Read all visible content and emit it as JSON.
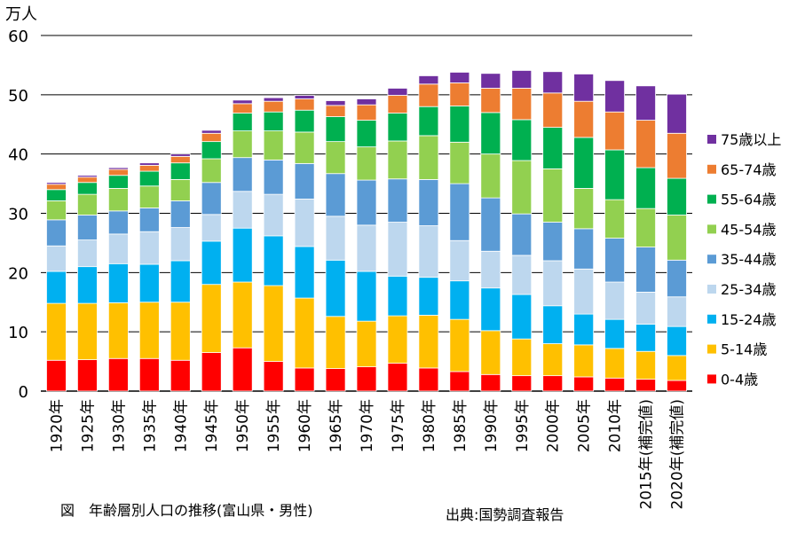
{
  "chart_data": {
    "type": "bar",
    "stacked": true,
    "yunit": "万人",
    "ylim": [
      0,
      60
    ],
    "yticks": [
      0,
      10,
      20,
      30,
      40,
      50,
      60
    ],
    "grid": true,
    "legend_position": "right",
    "categories": [
      "1920年",
      "1925年",
      "1930年",
      "1935年",
      "1940年",
      "1945年",
      "1950年",
      "1955年",
      "1960年",
      "1965年",
      "1970年",
      "1975年",
      "1980年",
      "1985年",
      "1990年",
      "1995年",
      "2000年",
      "2005年",
      "2010年",
      "2015年(補完値)",
      "2020年(補完値)"
    ],
    "series": [
      {
        "name": "0-4歳",
        "color": "#ff0000",
        "values": [
          5.2,
          5.3,
          5.5,
          5.5,
          5.2,
          6.5,
          7.3,
          5.0,
          3.9,
          3.8,
          4.1,
          4.7,
          3.9,
          3.3,
          2.8,
          2.6,
          2.6,
          2.4,
          2.2,
          2.0,
          1.8
        ]
      },
      {
        "name": "5-14歳",
        "color": "#ffc000",
        "values": [
          9.6,
          9.5,
          9.4,
          9.5,
          9.8,
          11.5,
          11.1,
          12.8,
          11.8,
          8.8,
          7.7,
          8.0,
          8.9,
          8.8,
          7.4,
          6.2,
          5.4,
          5.4,
          5.0,
          4.7,
          4.2
        ]
      },
      {
        "name": "15-24歳",
        "color": "#00b0f0",
        "values": [
          5.4,
          6.2,
          6.6,
          6.4,
          7.0,
          7.3,
          9.1,
          8.4,
          8.7,
          9.5,
          8.4,
          6.7,
          6.4,
          6.5,
          7.2,
          7.5,
          6.4,
          5.2,
          4.9,
          4.6,
          4.9
        ]
      },
      {
        "name": "25-34歳",
        "color": "#bdd7ee",
        "values": [
          4.3,
          4.5,
          5.0,
          5.5,
          5.6,
          4.5,
          6.2,
          7.0,
          8.0,
          7.4,
          7.8,
          9.1,
          8.7,
          6.8,
          6.2,
          6.6,
          7.6,
          7.6,
          6.3,
          5.4,
          5.0
        ]
      },
      {
        "name": "35-44歳",
        "color": "#5b9bd5",
        "values": [
          4.4,
          4.2,
          3.9,
          4.0,
          4.5,
          5.4,
          5.7,
          5.8,
          6.0,
          7.2,
          7.6,
          7.3,
          7.8,
          9.6,
          9.0,
          7.0,
          6.5,
          6.8,
          7.4,
          7.6,
          6.2
        ]
      },
      {
        "name": "45-54歳",
        "color": "#92d050",
        "values": [
          3.2,
          3.5,
          3.8,
          3.7,
          3.6,
          4.0,
          4.5,
          4.9,
          5.3,
          5.4,
          5.6,
          6.4,
          7.4,
          7.0,
          7.4,
          9.0,
          9.0,
          6.8,
          6.5,
          6.5,
          7.6
        ]
      },
      {
        "name": "55-64歳",
        "color": "#00b050",
        "values": [
          1.9,
          2.0,
          2.2,
          2.5,
          2.8,
          2.9,
          3.0,
          3.2,
          3.7,
          4.2,
          4.5,
          4.7,
          4.9,
          6.1,
          7.0,
          6.9,
          7.0,
          8.6,
          8.4,
          6.9,
          6.2
        ]
      },
      {
        "name": "65-74歳",
        "color": "#ed7d31",
        "values": [
          0.9,
          0.9,
          1.0,
          1.0,
          1.1,
          1.4,
          1.6,
          1.8,
          1.9,
          1.9,
          2.6,
          3.0,
          3.8,
          3.9,
          4.1,
          5.3,
          5.8,
          6.1,
          6.4,
          8.0,
          7.6
        ]
      },
      {
        "name": "75歳以上",
        "color": "#7030a0",
        "values": [
          0.3,
          0.3,
          0.3,
          0.4,
          0.4,
          0.5,
          0.6,
          0.6,
          0.6,
          0.8,
          1.0,
          1.2,
          1.4,
          1.8,
          2.5,
          3.0,
          3.6,
          4.6,
          5.3,
          5.8,
          6.6
        ]
      }
    ]
  },
  "captions": {
    "figure_title": "図　年齢層別人口の推移(富山県・男性)",
    "source": "出典:国勢調査報告"
  }
}
